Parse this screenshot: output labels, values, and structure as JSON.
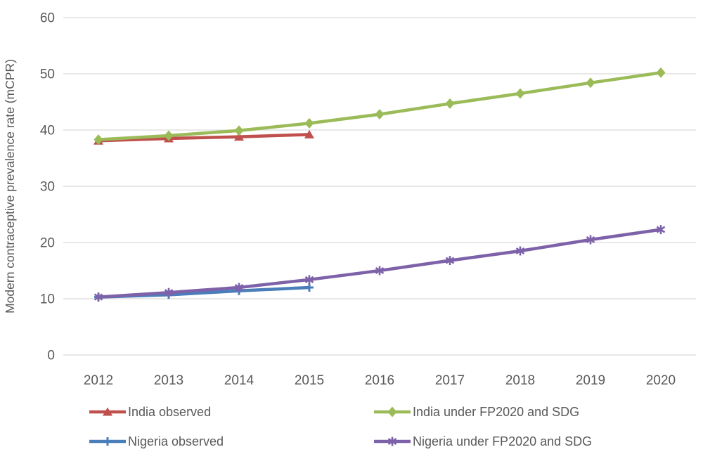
{
  "chart_data": {
    "type": "line",
    "x": [
      "2012",
      "2013",
      "2014",
      "2015",
      "2016",
      "2017",
      "2018",
      "2019",
      "2020"
    ],
    "ylabel": "Modern contraceptive prevalence rate (mCPR)",
    "xlabel": "",
    "title": "",
    "ylim": [
      0,
      60
    ],
    "ytick_step": 10,
    "yticks": [
      "0",
      "10",
      "20",
      "30",
      "40",
      "50",
      "60"
    ],
    "grid": "horizontal-only",
    "legend_position": "bottom-two-columns",
    "gridline_color": "#D9D9D9",
    "axis_label_color": "#595959",
    "series": [
      {
        "name": "India observed",
        "color": "#C0504D",
        "marker": "triangle",
        "values": [
          38.1,
          38.5,
          38.8,
          39.2
        ]
      },
      {
        "name": "India under FP2020 and SDG",
        "color": "#9BBB58",
        "marker": "diamond",
        "values": [
          38.3,
          39.0,
          39.9,
          41.2,
          42.8,
          44.7,
          46.5,
          48.4,
          50.2
        ]
      },
      {
        "name": "Nigeria observed",
        "color": "#4A7EBB",
        "marker": "plus",
        "values": [
          10.3,
          10.7,
          11.4,
          12.0
        ]
      },
      {
        "name": "Nigeria under FP2020 and SDG",
        "color": "#7E62A9",
        "marker": "asterisk",
        "values": [
          10.3,
          11.1,
          12.0,
          13.4,
          15.0,
          16.8,
          18.5,
          20.5,
          22.3
        ]
      }
    ]
  }
}
